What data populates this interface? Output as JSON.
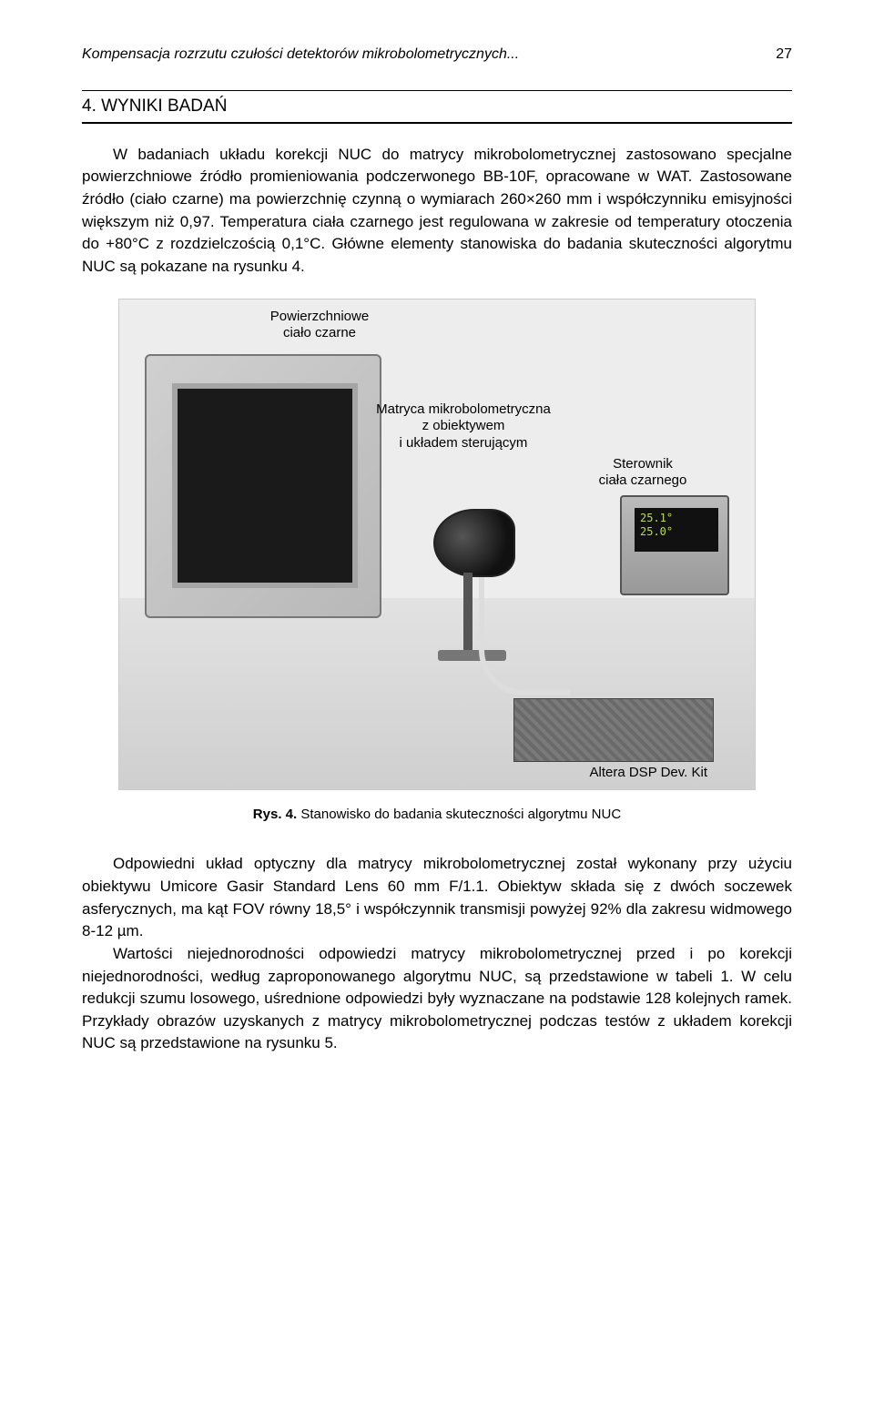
{
  "header": {
    "running_title": "Kompensacja rozrzutu czułości detektorów mikrobolometrycznych...",
    "page_number": "27"
  },
  "section": {
    "heading": "4. WYNIKI BADAŃ"
  },
  "para1": "W badaniach układu korekcji NUC do matrycy mikrobolometrycznej zastosowano specjalne powierzchniowe źródło promieniowania podczerwonego BB-10F, opracowane w WAT. Zastosowane źródło (ciało czarne) ma powierzchnię czynną o wymiarach 260×260 mm i współczynniku emisyjności większym niż 0,97. Temperatura ciała czarnego jest regulowana w zakresie od temperatury otoczenia do +80°C z rozdzielczością 0,1°C. Główne elementy stanowiska do badania skuteczności algorytmu NUC są pokazane na rysunku 4.",
  "figure": {
    "labels": {
      "blackbody_surface": "Powierzchniowe\nciało czarne",
      "matrix": "Matryca mikrobolometryczna\nz obiektywem\ni układem sterującym",
      "controller": "Sterownik\nciała czarnego",
      "board": "Altera DSP Dev. Kit",
      "temp_line1": "25.1°",
      "temp_line2": "25.0°"
    },
    "caption_prefix": "Rys. 4.",
    "caption_text": " Stanowisko do badania skuteczności algorytmu NUC"
  },
  "para2": "Odpowiedni układ optyczny dla matrycy mikrobolometrycznej został wykonany przy użyciu obiektywu Umicore Gasir Standard Lens 60 mm F/1.1. Obiektyw składa się z dwóch soczewek asferycznych, ma kąt FOV równy 18,5° i współczynnik transmisji powyżej 92% dla zakresu widmowego 8-12 µm.",
  "para3": "Wartości niejednorodności odpowiedzi matrycy mikrobolometrycznej przed i po korekcji niejednorodności, według zaproponowanego algorytmu NUC, są przedstawione w tabeli 1. W celu redukcji szumu losowego, uśrednione odpowiedzi były wyznaczane na podstawie 128 kolejnych ramek. Przykłady obrazów uzyskanych z matrycy mikrobolometrycznej podczas testów z układem korekcji NUC są przedstawione na rysunku 5."
}
